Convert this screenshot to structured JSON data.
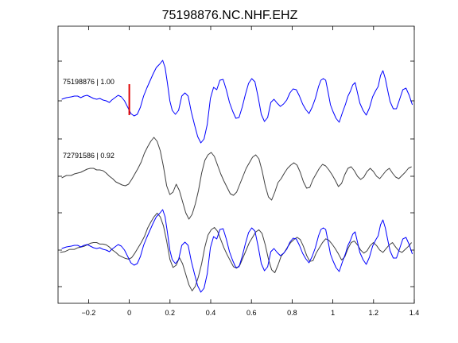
{
  "chart_data": {
    "type": "line",
    "title": "75198876.NC.NHF.EHZ",
    "xlim": [
      -0.35,
      1.4
    ],
    "x_ticks": [
      -0.2,
      0,
      0.2,
      0.4,
      0.6,
      0.8,
      1,
      1.2,
      1.4
    ],
    "x_tick_labels": [
      "−0.2",
      "0",
      "0.2",
      "0.4",
      "0.6",
      "0.8",
      "1",
      "1.2",
      "1.4"
    ],
    "y_ticks_unlabeled": 6,
    "grid": false,
    "pick_marker": {
      "x": 0,
      "color": "#e00000"
    },
    "traces": [
      {
        "label": "75198876 | 1.00",
        "color": "#0000ff",
        "offset_slot": 0
      },
      {
        "label": "72791586 | 0.92",
        "color": "#404040",
        "offset_slot": 1
      },
      {
        "label": "",
        "overlay": true,
        "colors": [
          "#0000ff",
          "#404040"
        ],
        "offset_slot": 2
      }
    ]
  }
}
